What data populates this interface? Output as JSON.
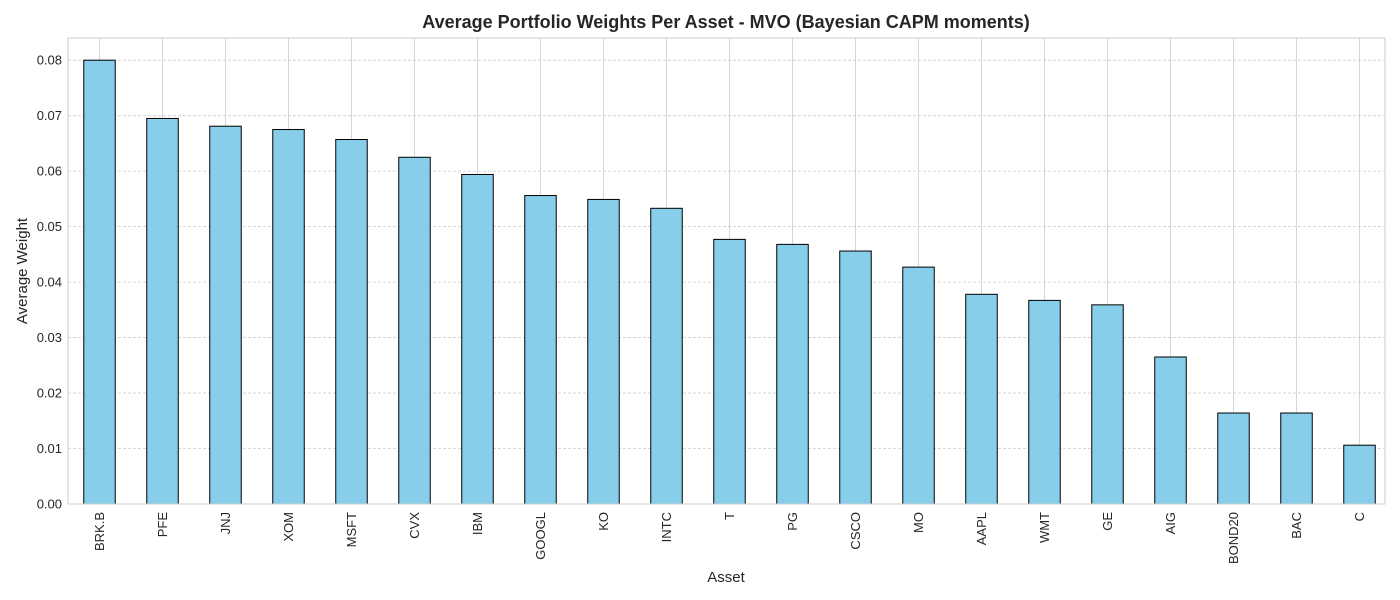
{
  "chart_data": {
    "type": "bar",
    "title": "Average Portfolio Weights Per Asset - MVO (Bayesian CAPM moments)",
    "xlabel": "Asset",
    "ylabel": "Average Weight",
    "categories": [
      "BRK.B",
      "PFE",
      "JNJ",
      "XOM",
      "MSFT",
      "CVX",
      "IBM",
      "GOOGL",
      "KO",
      "INTC",
      "T",
      "PG",
      "CSCO",
      "MO",
      "AAPL",
      "WMT",
      "GE",
      "AIG",
      "BOND20",
      "BAC",
      "C"
    ],
    "values": [
      0.08,
      0.0695,
      0.0681,
      0.0675,
      0.0657,
      0.0625,
      0.0594,
      0.0556,
      0.0549,
      0.0533,
      0.0477,
      0.0468,
      0.0456,
      0.0427,
      0.0378,
      0.0367,
      0.0359,
      0.0265,
      0.0164,
      0.0164,
      0.0106
    ],
    "ylim": [
      0,
      0.084
    ],
    "yticks": [
      "0.00",
      "0.01",
      "0.02",
      "0.03",
      "0.04",
      "0.05",
      "0.06",
      "0.07",
      "0.08"
    ],
    "grid": true,
    "colors": {
      "bar_fill": "#87ceeb",
      "bar_edge": "#000000",
      "grid": "#cccccc"
    }
  }
}
